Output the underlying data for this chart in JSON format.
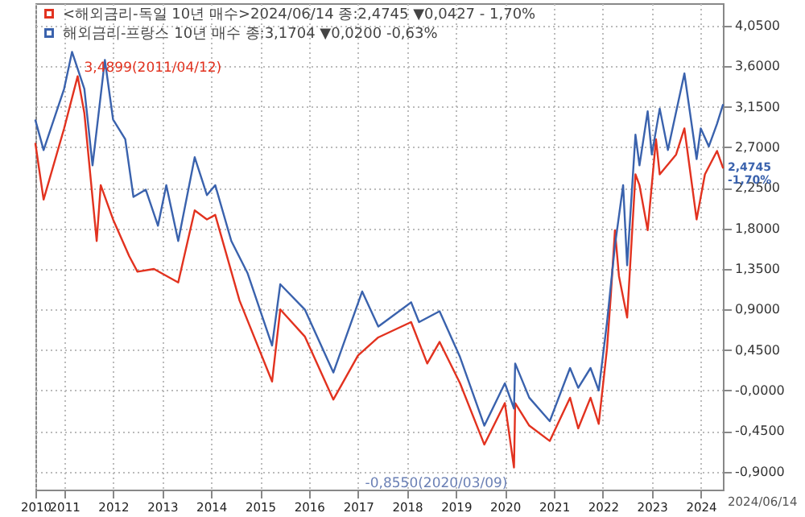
{
  "chart_data": {
    "type": "line",
    "series": [
      {
        "name": "<해외금리-독일 10년 매수>2024/06/14 종:2,4745 ▼0,0427 - 1,70%",
        "color": "#e2321f",
        "x": [
          "2010-06",
          "2010-08",
          "2011-01",
          "2011-04-12",
          "2011-06",
          "2011-09",
          "2011-10",
          "2012-01",
          "2012-05",
          "2012-07",
          "2012-11",
          "2013-05",
          "2013-09",
          "2013-12",
          "2014-02",
          "2014-08",
          "2015-04",
          "2015-06",
          "2015-12",
          "2016-07",
          "2017-01",
          "2017-06",
          "2018-02",
          "2018-06",
          "2018-09",
          "2019-02",
          "2019-08",
          "2020-01",
          "2020-03-09",
          "2020-03-18",
          "2020-07",
          "2020-12",
          "2021-05",
          "2021-07",
          "2021-10",
          "2021-12",
          "2022-02",
          "2022-03",
          "2022-04",
          "2022-05",
          "2022-07",
          "2022-09",
          "2022-10",
          "2022-12",
          "2023-02",
          "2023-03",
          "2023-07",
          "2023-09",
          "2023-12",
          "2024-02",
          "2024-05",
          "2024-06-14"
        ],
        "values": [
          2.74,
          2.12,
          2.91,
          3.4899,
          3.08,
          1.66,
          2.28,
          1.9,
          1.49,
          1.32,
          1.35,
          1.2,
          2.0,
          1.9,
          1.95,
          1.0,
          0.1,
          0.9,
          0.6,
          -0.1,
          0.39,
          0.59,
          0.76,
          0.3,
          0.54,
          0.08,
          -0.6,
          -0.14,
          -0.855,
          -0.14,
          -0.39,
          -0.56,
          -0.08,
          -0.42,
          -0.08,
          -0.37,
          0.47,
          1.05,
          1.78,
          1.27,
          0.81,
          2.4,
          2.28,
          1.78,
          2.79,
          2.4,
          2.62,
          2.91,
          1.9,
          2.4,
          2.66,
          2.4745
        ]
      },
      {
        "name": "해외금리-프랑스 10년 매수 종:3,1704 ▼0,0200 -0,63%",
        "color": "#3a62ad",
        "x": [
          "2010-06",
          "2010-08",
          "2011-01",
          "2011-03",
          "2011-06",
          "2011-08",
          "2011-11",
          "2012-01",
          "2012-04",
          "2012-06",
          "2012-09",
          "2012-12",
          "2013-02",
          "2013-05",
          "2013-09",
          "2013-12",
          "2014-02",
          "2014-06",
          "2014-10",
          "2015-04",
          "2015-06",
          "2015-12",
          "2016-07",
          "2017-02",
          "2017-06",
          "2018-02",
          "2018-04",
          "2018-09",
          "2019-02",
          "2019-08",
          "2020-01",
          "2020-03-09",
          "2020-03-18",
          "2020-07",
          "2020-12",
          "2021-05",
          "2021-07",
          "2021-10",
          "2021-12",
          "2022-02",
          "2022-04",
          "2022-06",
          "2022-07",
          "2022-09",
          "2022-10",
          "2022-12",
          "2023-01",
          "2023-03",
          "2023-05",
          "2023-09",
          "2023-12",
          "2024-01",
          "2024-03",
          "2024-05",
          "2024-06-14"
        ],
        "values": [
          3.0,
          2.67,
          3.35,
          3.76,
          3.35,
          2.5,
          3.67,
          3.01,
          2.79,
          2.15,
          2.23,
          1.83,
          2.28,
          1.66,
          2.59,
          2.17,
          2.28,
          1.66,
          1.3,
          0.5,
          1.18,
          0.9,
          0.2,
          1.1,
          0.71,
          0.98,
          0.76,
          0.88,
          0.37,
          -0.39,
          0.08,
          -0.2,
          0.3,
          -0.08,
          -0.34,
          0.25,
          0.03,
          0.25,
          0.0,
          0.76,
          1.61,
          2.28,
          1.39,
          2.84,
          2.5,
          3.1,
          2.62,
          3.13,
          2.67,
          3.52,
          2.57,
          2.91,
          2.71,
          2.96,
          3.1704
        ]
      }
    ],
    "xlim": [
      "2010-06-01",
      "2024-06-14"
    ],
    "xticks": [
      {
        "value": "2010-06-01",
        "label": "2010"
      },
      {
        "value": "2011-01-01",
        "label": "2011"
      },
      {
        "value": "2012-01-01",
        "label": "2012"
      },
      {
        "value": "2013-01-01",
        "label": "2013"
      },
      {
        "value": "2014-01-01",
        "label": "2014"
      },
      {
        "value": "2015-01-01",
        "label": "2015"
      },
      {
        "value": "2016-01-01",
        "label": "2016"
      },
      {
        "value": "2017-01-01",
        "label": "2017"
      },
      {
        "value": "2018-01-01",
        "label": "2018"
      },
      {
        "value": "2019-01-01",
        "label": "2019"
      },
      {
        "value": "2020-01-01",
        "label": "2020"
      },
      {
        "value": "2021-01-01",
        "label": "2021"
      },
      {
        "value": "2022-01-01",
        "label": "2022"
      },
      {
        "value": "2023-01-01",
        "label": "2023"
      },
      {
        "value": "2024-01-01",
        "label": "2024"
      }
    ],
    "ylim": [
      -1.1,
      4.3
    ],
    "yticks": [
      {
        "value": -0.9,
        "label": "-0,9000"
      },
      {
        "value": -0.45,
        "label": "-0,4500"
      },
      {
        "value": 0,
        "label": "-0,0000"
      },
      {
        "value": 0.45,
        "label": "0,4500"
      },
      {
        "value": 0.9,
        "label": "0,9000"
      },
      {
        "value": 1.35,
        "label": "1,3500"
      },
      {
        "value": 1.8,
        "label": "1,8000"
      },
      {
        "value": 2.25,
        "label": "2,2500"
      },
      {
        "value": 2.7,
        "label": "2,7000"
      },
      {
        "value": 3.15,
        "label": "3,1500"
      },
      {
        "value": 3.6,
        "label": "3,6000"
      },
      {
        "value": 4.05,
        "label": "4,0500"
      }
    ],
    "annotations": [
      {
        "text": "3,4899(2011/04/12)",
        "x": "2011-04-12",
        "y": 3.4899
      },
      {
        "text": "-0,8550(2020/03/09)",
        "x": "2020-03-09",
        "y": -0.855
      },
      {
        "text": "2,4745\n-1,70%",
        "x": "2024-06-14",
        "y": 2.4745
      },
      "2024/06/14"
    ],
    "grid": true,
    "legend": "top left",
    "line_style": "solid",
    "marker": "none"
  }
}
